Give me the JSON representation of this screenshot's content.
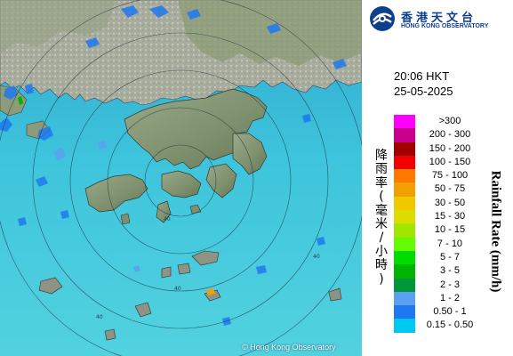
{
  "time": "20:06 HKT",
  "date": "25-05-2025",
  "logo": {
    "chinese": "香港天文台",
    "english": "HONG KONG OBSERVATORY"
  },
  "legend": {
    "title_en": "Rainfall Rate (mm/h)",
    "title_cn": [
      "降",
      "雨",
      "率",
      "(",
      "毫",
      "米",
      "/",
      "小",
      "時",
      ")"
    ],
    "items": [
      {
        "label": ">300",
        "color": "#ff00ff"
      },
      {
        "label": "200 - 300",
        "color": "#c8008c"
      },
      {
        "label": "150 - 200",
        "color": "#a00000"
      },
      {
        "label": "100 - 150",
        "color": "#f00000"
      },
      {
        "label": "75 - 100",
        "color": "#ff7800"
      },
      {
        "label": "50 - 75",
        "color": "#f0a000"
      },
      {
        "label": "30 - 50",
        "color": "#f0c800"
      },
      {
        "label": "15 - 30",
        "color": "#dcdc00"
      },
      {
        "label": "10 - 15",
        "color": "#a0e600"
      },
      {
        "label": "7 - 10",
        "color": "#64fa00"
      },
      {
        "label": "5 - 7",
        "color": "#00dc00"
      },
      {
        "label": "3 - 5",
        "color": "#00b400"
      },
      {
        "label": "2 - 3",
        "color": "#00963c"
      },
      {
        "label": "1 - 2",
        "color": "#5aa0f0"
      },
      {
        "label": "0.50 - 1",
        "color": "#1e78f0"
      },
      {
        "label": "0.15 - 0.50",
        "color": "#00c8f0"
      }
    ]
  },
  "range_ring_labels": [
    "40",
    "40",
    "40",
    "40"
  ],
  "copyright": "© Hong Kong Observatory",
  "colors": {
    "sea": "#3ec4dc",
    "land": "#7a8e68",
    "rain": "#1e78f0"
  }
}
